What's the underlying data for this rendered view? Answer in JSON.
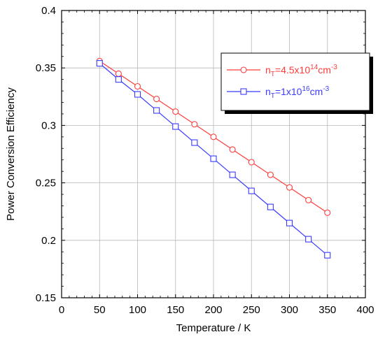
{
  "chart_data": {
    "type": "line",
    "xlabel": "Temperature / K",
    "ylabel": "Power Conversion Efficiency",
    "xlim": [
      0,
      400
    ],
    "ylim": [
      0.15,
      0.4
    ],
    "xticks": [
      "0",
      "50",
      "100",
      "150",
      "200",
      "250",
      "300",
      "350",
      "400"
    ],
    "yticks": [
      "0.15",
      "0.2",
      "0.25",
      "0.3",
      "0.35",
      "0.4"
    ],
    "grid": true,
    "legend_position": "top-right",
    "x": [
      50,
      75,
      100,
      125,
      150,
      175,
      200,
      225,
      250,
      275,
      300,
      325,
      350
    ],
    "series": [
      {
        "name": "n_T=4.5x10^14cm^-3",
        "label_parts": {
          "pre": "n",
          "sub": "T",
          "mid": "=4.5x10",
          "sup1": "14",
          "unit": "cm",
          "sup2": "-3"
        },
        "marker": "circle",
        "color": "#ff3b3b",
        "values": [
          0.356,
          0.345,
          0.334,
          0.323,
          0.312,
          0.301,
          0.29,
          0.279,
          0.268,
          0.257,
          0.246,
          0.235,
          0.224
        ]
      },
      {
        "name": "n_T=1x10^16cm^-3",
        "label_parts": {
          "pre": "n",
          "sub": "T",
          "mid": "=1x10",
          "sup1": "16",
          "unit": "cm",
          "sup2": "-3"
        },
        "marker": "square",
        "color": "#3b3bff",
        "values": [
          0.354,
          0.34,
          0.327,
          0.313,
          0.299,
          0.285,
          0.271,
          0.257,
          0.243,
          0.229,
          0.215,
          0.201,
          0.187
        ]
      }
    ]
  }
}
